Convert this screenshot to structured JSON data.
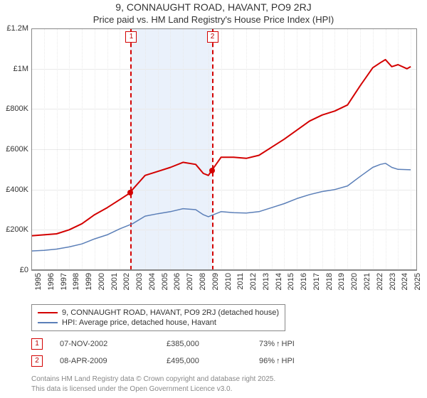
{
  "title_line1": "9, CONNAUGHT ROAD, HAVANT, PO9 2RJ",
  "title_line2": "Price paid vs. HM Land Registry's House Price Index (HPI)",
  "chart": {
    "type": "line",
    "background_color": "#ffffff",
    "grid_color": "#e9e9e9",
    "axis_color": "#888888",
    "shaded_band": {
      "x_from": 2002.85,
      "x_to": 2009.27,
      "color": "#eaf1fb"
    },
    "xlim": [
      1995,
      2025.5
    ],
    "ylim": [
      0,
      1200000
    ],
    "ytick_step": 200000,
    "yticks": [
      "£0",
      "£200K",
      "£400K",
      "£600K",
      "£800K",
      "£1M",
      "£1.2M"
    ],
    "xticks": [
      1995,
      1996,
      1997,
      1998,
      1999,
      2000,
      2001,
      2002,
      2003,
      2004,
      2005,
      2006,
      2007,
      2008,
      2009,
      2010,
      2011,
      2012,
      2013,
      2014,
      2015,
      2016,
      2017,
      2018,
      2019,
      2020,
      2021,
      2022,
      2023,
      2024,
      2025
    ],
    "series": [
      {
        "name": "property",
        "label": "9, CONNAUGHT ROAD, HAVANT, PO9 2RJ (detached house)",
        "color": "#d30000",
        "line_width": 2,
        "points": [
          [
            1995,
            170000
          ],
          [
            1996,
            175000
          ],
          [
            1997,
            180000
          ],
          [
            1998,
            200000
          ],
          [
            1999,
            230000
          ],
          [
            2000,
            275000
          ],
          [
            2001,
            310000
          ],
          [
            2002,
            350000
          ],
          [
            2002.85,
            385000
          ],
          [
            2003,
            400000
          ],
          [
            2004,
            470000
          ],
          [
            2005,
            490000
          ],
          [
            2006,
            510000
          ],
          [
            2007,
            535000
          ],
          [
            2008,
            525000
          ],
          [
            2008.6,
            480000
          ],
          [
            2009,
            470000
          ],
          [
            2009.27,
            495000
          ],
          [
            2010,
            560000
          ],
          [
            2011,
            560000
          ],
          [
            2012,
            555000
          ],
          [
            2013,
            570000
          ],
          [
            2014,
            610000
          ],
          [
            2015,
            650000
          ],
          [
            2016,
            695000
          ],
          [
            2017,
            740000
          ],
          [
            2018,
            770000
          ],
          [
            2019,
            790000
          ],
          [
            2020,
            820000
          ],
          [
            2021,
            915000
          ],
          [
            2022,
            1005000
          ],
          [
            2022.6,
            1030000
          ],
          [
            2023,
            1045000
          ],
          [
            2023.5,
            1010000
          ],
          [
            2024,
            1020000
          ],
          [
            2024.7,
            1000000
          ],
          [
            2025,
            1010000
          ]
        ]
      },
      {
        "name": "hpi",
        "label": "HPI: Average price, detached house, Havant",
        "color": "#5b7fb8",
        "line_width": 1.5,
        "points": [
          [
            1995,
            95000
          ],
          [
            1996,
            98000
          ],
          [
            1997,
            104000
          ],
          [
            1998,
            115000
          ],
          [
            1999,
            130000
          ],
          [
            2000,
            155000
          ],
          [
            2001,
            175000
          ],
          [
            2002,
            205000
          ],
          [
            2003,
            230000
          ],
          [
            2004,
            268000
          ],
          [
            2005,
            280000
          ],
          [
            2006,
            290000
          ],
          [
            2007,
            305000
          ],
          [
            2008,
            300000
          ],
          [
            2008.6,
            275000
          ],
          [
            2009,
            265000
          ],
          [
            2010,
            290000
          ],
          [
            2011,
            285000
          ],
          [
            2012,
            283000
          ],
          [
            2013,
            290000
          ],
          [
            2014,
            310000
          ],
          [
            2015,
            330000
          ],
          [
            2016,
            355000
          ],
          [
            2017,
            375000
          ],
          [
            2018,
            390000
          ],
          [
            2019,
            400000
          ],
          [
            2020,
            418000
          ],
          [
            2021,
            465000
          ],
          [
            2022,
            510000
          ],
          [
            2022.6,
            525000
          ],
          [
            2023,
            530000
          ],
          [
            2023.5,
            510000
          ],
          [
            2024,
            500000
          ],
          [
            2025,
            498000
          ]
        ]
      }
    ],
    "sale_markers": [
      {
        "n": "1",
        "x": 2002.85,
        "y": 385000,
        "color": "#d30000"
      },
      {
        "n": "2",
        "x": 2009.27,
        "y": 495000,
        "color": "#d30000"
      }
    ]
  },
  "legend": {
    "items": [
      {
        "color": "#d30000",
        "label": "9, CONNAUGHT ROAD, HAVANT, PO9 2RJ (detached house)"
      },
      {
        "color": "#5b7fb8",
        "label": "HPI: Average price, detached house, Havant"
      }
    ]
  },
  "sales": [
    {
      "n": "1",
      "date": "07-NOV-2002",
      "price": "£385,000",
      "pct": "73%",
      "arrow": "↑",
      "suffix": "HPI",
      "border_color": "#d30000"
    },
    {
      "n": "2",
      "date": "08-APR-2009",
      "price": "£495,000",
      "pct": "96%",
      "arrow": "↑",
      "suffix": "HPI",
      "border_color": "#d30000"
    }
  ],
  "footer": {
    "line1": "Contains HM Land Registry data © Crown copyright and database right 2025.",
    "line2": "This data is licensed under the Open Government Licence v3.0."
  }
}
